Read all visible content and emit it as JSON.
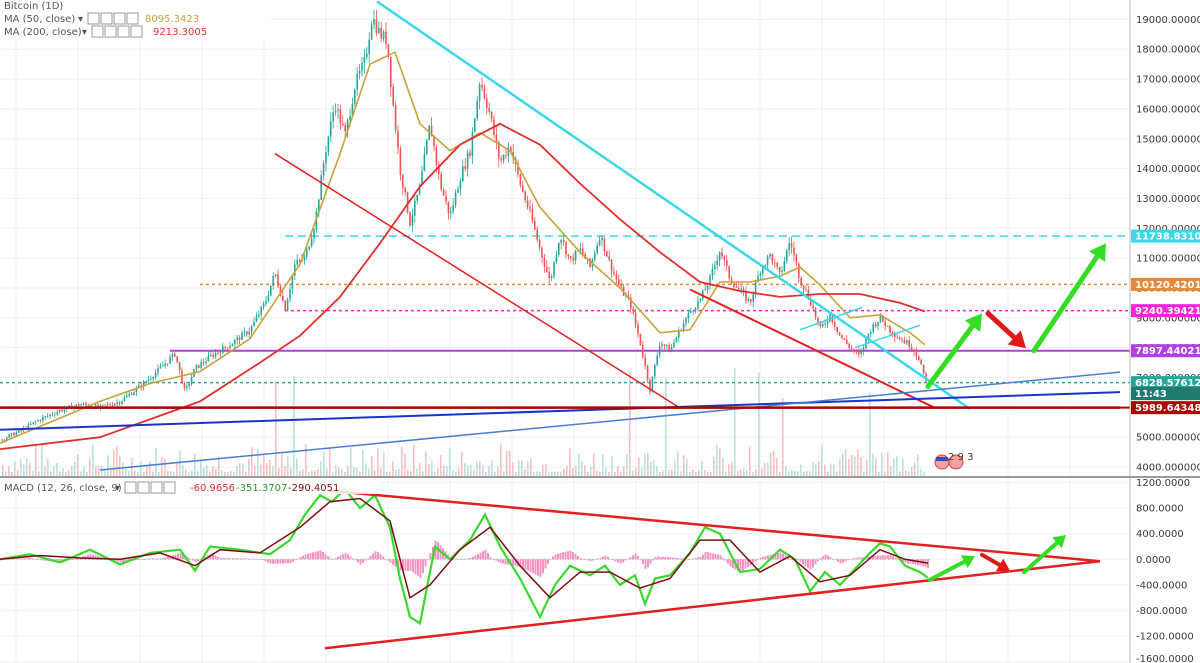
{
  "colors": {
    "price_up": "#26a69a",
    "price_down": "#ef5350",
    "ma50": "#c8a23a",
    "ma200": "#e0302e",
    "trend_cyan": "#39d8e8",
    "trend_red": "#e32020",
    "support_dark_red": "#b00000",
    "support_blue": "#1a33c8",
    "trend_light_blue": "#4a7fd0",
    "level_magenta": "#b23fe0",
    "level_pink": "#ff22dd",
    "level_orange": "#e8883a",
    "macd_line": "#3ad82e",
    "signal_line": "#7a1010",
    "histogram": "#f070b0",
    "arrow_green": "#33dd22",
    "arrow_red": "#e01818"
  },
  "legend": {
    "price_series_label": "Bitcoin (1D)",
    "ma50": {
      "label": "MA (50, close)",
      "value": "8095.3423"
    },
    "ma200": {
      "label": "MA (200, close)",
      "value": "9213.3005"
    },
    "macd": {
      "label": "MACD (12, 26, close, 9)",
      "v1": "-60.9656",
      "v2": "-351.3707",
      "v3": "-290.4051"
    }
  },
  "chart_data": [
    {
      "type": "line",
      "y_axis_labels": [
        "19000.00000000",
        "18000.00000000",
        "17000.00000000",
        "16000.00000000",
        "15000.00000000",
        "14000.00000000",
        "13000.00000000",
        "12000.00000000",
        "11000.00000000",
        "10000.00000000",
        "9000.00000000",
        "8000.00000000",
        "7000.00000000",
        "6000.00000000",
        "5000.00000000",
        "4000.00000000"
      ],
      "y_axis_values": [
        19000,
        18000,
        17000,
        16000,
        15000,
        14000,
        13000,
        12000,
        11000,
        10000,
        9000,
        8000,
        7000,
        6000,
        5000,
        4000
      ],
      "ylim": [
        3700,
        19650
      ],
      "price_tags": [
        {
          "label": "11738.83109222",
          "value": 11738.83,
          "color": "#39d8e8"
        },
        {
          "label": "10120.42010256",
          "value": 10120.42,
          "color": "#e8883a"
        },
        {
          "label": "9240.39421353",
          "value": 9240.39,
          "color": "#ff22dd"
        },
        {
          "label": "7897.44021346",
          "value": 7897.44,
          "color": "#b23fe0"
        },
        {
          "label": "6828.57612456",
          "value": 6828.58,
          "color": "#26a69a"
        },
        {
          "label": "11:43",
          "value": 6460,
          "color": "#1f7a70"
        },
        {
          "label": "5989.64348411",
          "value": 5989.64,
          "color": "#b00000"
        }
      ],
      "horizontal_levels": [
        {
          "value": 11738.83,
          "style": "dashed",
          "color": "#39d8e8"
        },
        {
          "value": 10120.42,
          "style": "dotted",
          "color": "#e8883a"
        },
        {
          "value": 9240.39,
          "style": "dotted",
          "color": "#ff22dd"
        },
        {
          "value": 7897.44,
          "style": "solid",
          "color": "#b23fe0"
        },
        {
          "value": 6828.58,
          "style": "dotted",
          "color": "#26a69a"
        },
        {
          "value": 5989.64,
          "style": "solid",
          "color": "#b00000"
        }
      ],
      "close_path": [
        [
          0,
          4900
        ],
        [
          20,
          5200
        ],
        [
          40,
          5600
        ],
        [
          60,
          5900
        ],
        [
          80,
          6100
        ],
        [
          100,
          6000
        ],
        [
          120,
          6200
        ],
        [
          140,
          6700
        ],
        [
          160,
          7300
        ],
        [
          175,
          7800
        ],
        [
          185,
          6500
        ],
        [
          195,
          7300
        ],
        [
          210,
          7700
        ],
        [
          230,
          8100
        ],
        [
          250,
          8600
        ],
        [
          265,
          9500
        ],
        [
          275,
          10500
        ],
        [
          285,
          9300
        ],
        [
          295,
          10800
        ],
        [
          305,
          11000
        ],
        [
          315,
          12200
        ],
        [
          325,
          14500
        ],
        [
          335,
          16200
        ],
        [
          345,
          15100
        ],
        [
          355,
          16800
        ],
        [
          365,
          17600
        ],
        [
          372,
          19100
        ],
        [
          380,
          18500
        ],
        [
          387,
          18300
        ],
        [
          392,
          16500
        ],
        [
          400,
          14000
        ],
        [
          410,
          12200
        ],
        [
          420,
          13400
        ],
        [
          430,
          15500
        ],
        [
          440,
          13500
        ],
        [
          450,
          12400
        ],
        [
          460,
          13700
        ],
        [
          470,
          14600
        ],
        [
          480,
          17000
        ],
        [
          490,
          15800
        ],
        [
          500,
          14200
        ],
        [
          510,
          14800
        ],
        [
          520,
          13500
        ],
        [
          530,
          12500
        ],
        [
          540,
          11300
        ],
        [
          550,
          10200
        ],
        [
          560,
          11800
        ],
        [
          570,
          10900
        ],
        [
          580,
          11300
        ],
        [
          590,
          10700
        ],
        [
          600,
          11800
        ],
        [
          610,
          10800
        ],
        [
          620,
          10000
        ],
        [
          630,
          9500
        ],
        [
          640,
          8200
        ],
        [
          650,
          6600
        ],
        [
          660,
          8200
        ],
        [
          670,
          7900
        ],
        [
          680,
          8600
        ],
        [
          690,
          9200
        ],
        [
          700,
          9600
        ],
        [
          710,
          10300
        ],
        [
          720,
          11300
        ],
        [
          730,
          10300
        ],
        [
          740,
          9900
        ],
        [
          750,
          9500
        ],
        [
          760,
          10600
        ],
        [
          770,
          11100
        ],
        [
          780,
          10400
        ],
        [
          790,
          11600
        ],
        [
          800,
          10300
        ],
        [
          810,
          9600
        ],
        [
          820,
          8600
        ],
        [
          830,
          9100
        ],
        [
          840,
          8400
        ],
        [
          850,
          8000
        ],
        [
          860,
          7700
        ],
        [
          870,
          8600
        ],
        [
          880,
          9000
        ],
        [
          890,
          8600
        ],
        [
          900,
          8300
        ],
        [
          910,
          8100
        ],
        [
          920,
          7600
        ],
        [
          925,
          6830
        ]
      ],
      "ma50_path": [
        [
          0,
          4800
        ],
        [
          50,
          5500
        ],
        [
          100,
          6200
        ],
        [
          150,
          6800
        ],
        [
          200,
          7200
        ],
        [
          250,
          8300
        ],
        [
          300,
          10800
        ],
        [
          340,
          14500
        ],
        [
          370,
          17500
        ],
        [
          395,
          17900
        ],
        [
          420,
          15500
        ],
        [
          450,
          14600
        ],
        [
          480,
          15200
        ],
        [
          510,
          14600
        ],
        [
          540,
          12700
        ],
        [
          580,
          11200
        ],
        [
          620,
          10000
        ],
        [
          660,
          8500
        ],
        [
          690,
          8600
        ],
        [
          720,
          10200
        ],
        [
          750,
          10200
        ],
        [
          780,
          10400
        ],
        [
          800,
          10700
        ],
        [
          820,
          10100
        ],
        [
          850,
          9000
        ],
        [
          880,
          9100
        ],
        [
          910,
          8500
        ],
        [
          925,
          8100
        ]
      ],
      "ma200_path": [
        [
          0,
          4600
        ],
        [
          100,
          5000
        ],
        [
          200,
          6200
        ],
        [
          260,
          7500
        ],
        [
          300,
          8400
        ],
        [
          340,
          9700
        ],
        [
          380,
          11500
        ],
        [
          420,
          13400
        ],
        [
          460,
          14800
        ],
        [
          500,
          15500
        ],
        [
          540,
          14800
        ],
        [
          580,
          13500
        ],
        [
          620,
          12300
        ],
        [
          660,
          11200
        ],
        [
          700,
          10200
        ],
        [
          740,
          9900
        ],
        [
          780,
          9700
        ],
        [
          820,
          9800
        ],
        [
          860,
          9800
        ],
        [
          900,
          9500
        ],
        [
          925,
          9213
        ]
      ],
      "trend_lines": [
        {
          "name": "cyan-downtrend",
          "color": "#39d8e8",
          "width": 2.5,
          "p1": [
            377,
            19600
          ],
          "p2": [
            970,
            5950
          ]
        },
        {
          "name": "red-diagonal-upper",
          "color": "#e32020",
          "width": 1.5,
          "p1": [
            275,
            14500
          ],
          "p2": [
            680,
            5980
          ]
        },
        {
          "name": "red-diagonal-lower",
          "color": "#e32020",
          "width": 2,
          "p1": [
            690,
            9950
          ],
          "p2": [
            935,
            5980
          ]
        },
        {
          "name": "cyan-short-1",
          "color": "#39d8e8",
          "width": 1.5,
          "p1": [
            800,
            8600
          ],
          "p2": [
            862,
            9350
          ]
        },
        {
          "name": "cyan-short-2",
          "color": "#39d8e8",
          "width": 1.5,
          "p1": [
            855,
            8000
          ],
          "p2": [
            920,
            8750
          ]
        },
        {
          "name": "blue-support",
          "color": "#1a33c8",
          "width": 2,
          "p1": [
            0,
            5250
          ],
          "p2": [
            1120,
            6510
          ]
        },
        {
          "name": "light-blue-support",
          "color": "#4a7fd0",
          "width": 1.5,
          "p1": [
            100,
            3900
          ],
          "p2": [
            1120,
            7180
          ]
        },
        {
          "name": "dark-red-support",
          "color": "#b00000",
          "width": 2.5,
          "p1": [
            0,
            5990
          ],
          "p2": [
            1120,
            5990
          ]
        }
      ],
      "arrows": [
        {
          "color": "#33dd22",
          "from": [
            928,
            6700
          ],
          "to": [
            982,
            9150
          ]
        },
        {
          "color": "#e01818",
          "from": [
            988,
            9150
          ],
          "to": [
            1026,
            7980
          ]
        },
        {
          "color": "#33dd22",
          "from": [
            1034,
            7900
          ],
          "to": [
            1106,
            11500
          ]
        }
      ]
    },
    {
      "type": "line",
      "title": "MACD (12, 26, close, 9)",
      "y_axis_labels": [
        "1200.0000",
        "800.0000",
        "400.0000",
        "0.0000",
        "-400.0000",
        "-800.0000",
        "-1200.0000",
        "-1600.0000"
      ],
      "y_axis_values": [
        1200,
        800,
        400,
        0,
        -400,
        -800,
        -1200,
        -1600
      ],
      "ylim": [
        -1620,
        1270
      ],
      "macd_path": [
        [
          0,
          0
        ],
        [
          30,
          80
        ],
        [
          60,
          -50
        ],
        [
          90,
          150
        ],
        [
          120,
          -80
        ],
        [
          150,
          100
        ],
        [
          180,
          150
        ],
        [
          195,
          -180
        ],
        [
          210,
          200
        ],
        [
          240,
          150
        ],
        [
          270,
          80
        ],
        [
          290,
          300
        ],
        [
          305,
          700
        ],
        [
          320,
          1000
        ],
        [
          332,
          900
        ],
        [
          345,
          1100
        ],
        [
          360,
          800
        ],
        [
          375,
          1000
        ],
        [
          390,
          500
        ],
        [
          400,
          -300
        ],
        [
          410,
          -900
        ],
        [
          420,
          -1000
        ],
        [
          435,
          200
        ],
        [
          450,
          0
        ],
        [
          470,
          300
        ],
        [
          485,
          700
        ],
        [
          500,
          200
        ],
        [
          520,
          -300
        ],
        [
          540,
          -900
        ],
        [
          555,
          -400
        ],
        [
          570,
          -100
        ],
        [
          590,
          -250
        ],
        [
          605,
          -100
        ],
        [
          620,
          -400
        ],
        [
          635,
          -250
        ],
        [
          645,
          -700
        ],
        [
          655,
          -300
        ],
        [
          670,
          -250
        ],
        [
          690,
          100
        ],
        [
          705,
          500
        ],
        [
          720,
          400
        ],
        [
          740,
          -200
        ],
        [
          760,
          -150
        ],
        [
          780,
          150
        ],
        [
          795,
          0
        ],
        [
          810,
          -500
        ],
        [
          825,
          -200
        ],
        [
          840,
          -400
        ],
        [
          855,
          -150
        ],
        [
          870,
          100
        ],
        [
          880,
          250
        ],
        [
          890,
          200
        ],
        [
          905,
          -100
        ],
        [
          920,
          -200
        ],
        [
          928,
          -290
        ]
      ],
      "signal_path": [
        [
          0,
          0
        ],
        [
          40,
          60
        ],
        [
          80,
          20
        ],
        [
          120,
          0
        ],
        [
          160,
          100
        ],
        [
          195,
          -100
        ],
        [
          220,
          150
        ],
        [
          260,
          100
        ],
        [
          300,
          500
        ],
        [
          330,
          900
        ],
        [
          360,
          950
        ],
        [
          390,
          600
        ],
        [
          410,
          -600
        ],
        [
          430,
          -400
        ],
        [
          460,
          150
        ],
        [
          490,
          500
        ],
        [
          520,
          -100
        ],
        [
          550,
          -600
        ],
        [
          580,
          -200
        ],
        [
          610,
          -200
        ],
        [
          640,
          -450
        ],
        [
          670,
          -300
        ],
        [
          700,
          300
        ],
        [
          730,
          300
        ],
        [
          760,
          -200
        ],
        [
          790,
          50
        ],
        [
          820,
          -350
        ],
        [
          850,
          -250
        ],
        [
          880,
          150
        ],
        [
          905,
          0
        ],
        [
          928,
          -60
        ]
      ],
      "trend_lines": [
        {
          "name": "macd-upper-wedge",
          "color": "#e32020",
          "width": 2.5,
          "p1": [
            330,
            1070
          ],
          "p2": [
            1100,
            -30
          ]
        },
        {
          "name": "macd-lower-wedge",
          "color": "#e32020",
          "width": 2.5,
          "p1": [
            325,
            -1390
          ],
          "p2": [
            1100,
            -30
          ]
        }
      ],
      "arrows": [
        {
          "color": "#33dd22",
          "from": [
            930,
            -320
          ],
          "to": [
            975,
            50
          ]
        },
        {
          "color": "#e01818",
          "from": [
            982,
            70
          ],
          "to": [
            1010,
            -180
          ]
        },
        {
          "color": "#33dd22",
          "from": [
            1024,
            -200
          ],
          "to": [
            1066,
            380
          ]
        }
      ]
    }
  ]
}
